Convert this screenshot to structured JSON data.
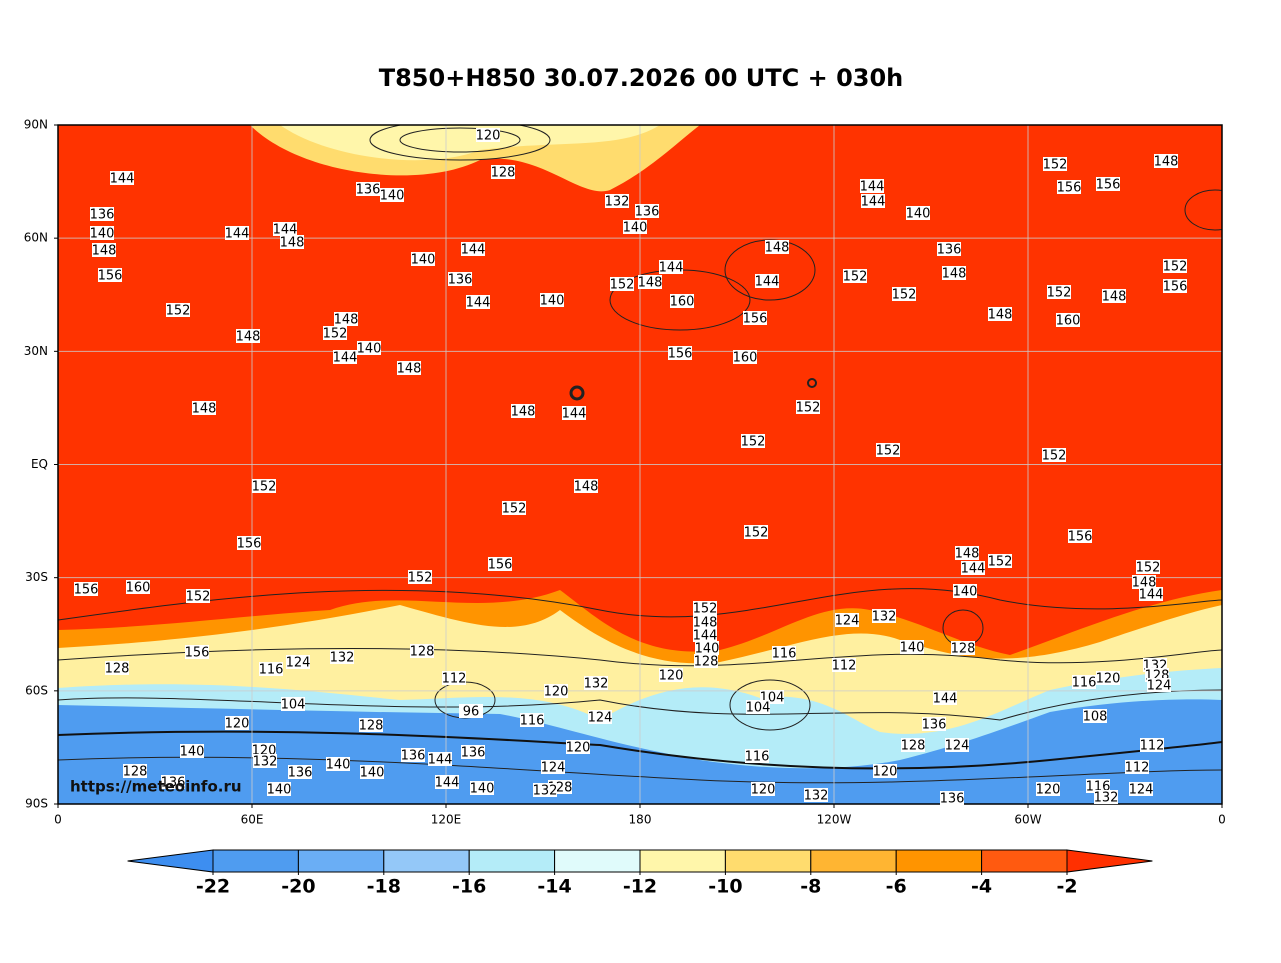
{
  "title": "T850+H850 30.07.2026 00 UTC + 030h",
  "map": {
    "lat_labels": [
      "90N",
      "60N",
      "30N",
      "EQ",
      "30S",
      "60S",
      "90S"
    ],
    "lon_labels": [
      "0",
      "60E",
      "120E",
      "180",
      "120W",
      "60W",
      "0"
    ],
    "credit": "https://meteoinfo.ru",
    "contour_labels": [
      144,
      136,
      140,
      148,
      156,
      144,
      144,
      148,
      136,
      140,
      128,
      120,
      144,
      140,
      136,
      144,
      140,
      152,
      148,
      144,
      160,
      132,
      136,
      140,
      148,
      144,
      156,
      160,
      156,
      152,
      152,
      140,
      136,
      148,
      148,
      152,
      160,
      148,
      152,
      156,
      152,
      156,
      156,
      148,
      144,
      144,
      152,
      148,
      152,
      148,
      144,
      140,
      148,
      148,
      148,
      144,
      152,
      152,
      152,
      152,
      152,
      148,
      152,
      156,
      152,
      156,
      156,
      156,
      160,
      152,
      152,
      148,
      144,
      152,
      152,
      148,
      144,
      140,
      152,
      148,
      144,
      140,
      128,
      124,
      132,
      140,
      128,
      156,
      124,
      132,
      128,
      116,
      128,
      112,
      116,
      120,
      132,
      120,
      112,
      104,
      104,
      104,
      144,
      136,
      132,
      128,
      124,
      120,
      116,
      108,
      120,
      128,
      116,
      124,
      120,
      96,
      140,
      120,
      132,
      136,
      144,
      136,
      140,
      140,
      136,
      128,
      136,
      140,
      144,
      140,
      124,
      128,
      132,
      116,
      120,
      120,
      128,
      124,
      112,
      112,
      120,
      116,
      132,
      124,
      136,
      132
    ]
  },
  "colorbar": {
    "ticks": [
      -22,
      -20,
      -18,
      -16,
      -14,
      -12,
      -10,
      -8,
      -6,
      -4,
      -2
    ],
    "colors": [
      "#3d8ef0",
      "#4f9cf0",
      "#6aaef5",
      "#94c8f8",
      "#b4ecf8",
      "#e0fbfb",
      "#fff6aa",
      "#ffdc6e",
      "#ffb532",
      "#ff9400",
      "#ff5a10",
      "#ff3000"
    ]
  }
}
